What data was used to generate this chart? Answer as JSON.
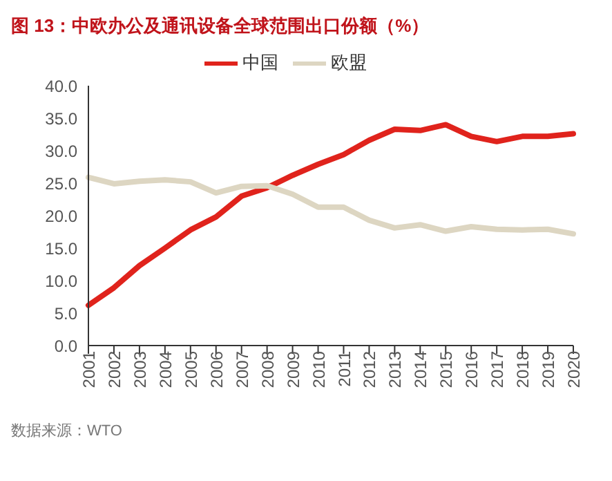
{
  "chart_data": {
    "type": "line",
    "title": "图 13：中欧办公及通讯设备全球范围出口份额（%）",
    "categories": [
      "2001",
      "2002",
      "2003",
      "2004",
      "2005",
      "2006",
      "2007",
      "2008",
      "2009",
      "2010",
      "2011",
      "2012",
      "2013",
      "2014",
      "2015",
      "2016",
      "2017",
      "2018",
      "2019",
      "2020"
    ],
    "series": [
      {
        "name": "中国",
        "color": "#e0231c",
        "values": [
          6.2,
          8.9,
          12.3,
          15.0,
          17.8,
          19.8,
          23.0,
          24.3,
          26.2,
          27.9,
          29.4,
          31.6,
          33.3,
          33.1,
          34.0,
          32.2,
          31.4,
          32.2,
          32.2,
          32.6
        ]
      },
      {
        "name": "欧盟",
        "color": "#ddd6c2",
        "values": [
          25.9,
          24.9,
          25.3,
          25.5,
          25.2,
          23.5,
          24.5,
          24.6,
          23.3,
          21.3,
          21.3,
          19.3,
          18.1,
          18.6,
          17.6,
          18.3,
          17.9,
          17.8,
          17.9,
          17.2
        ]
      }
    ],
    "ylim": [
      0,
      40
    ],
    "yticks": [
      {
        "value": 0,
        "label": "0.0"
      },
      {
        "value": 5,
        "label": "5.0"
      },
      {
        "value": 10,
        "label": "10.0"
      },
      {
        "value": 15,
        "label": "15.0"
      },
      {
        "value": 20,
        "label": "20.0"
      },
      {
        "value": 25,
        "label": "25.0"
      },
      {
        "value": 30,
        "label": "30.0"
      },
      {
        "value": 35,
        "label": "35.0"
      },
      {
        "value": 40,
        "label": "40.0"
      }
    ],
    "grid": false,
    "legend": "top",
    "marker": "none",
    "line_style": "solid",
    "annotations": [
      "数据来源：WTO"
    ]
  }
}
